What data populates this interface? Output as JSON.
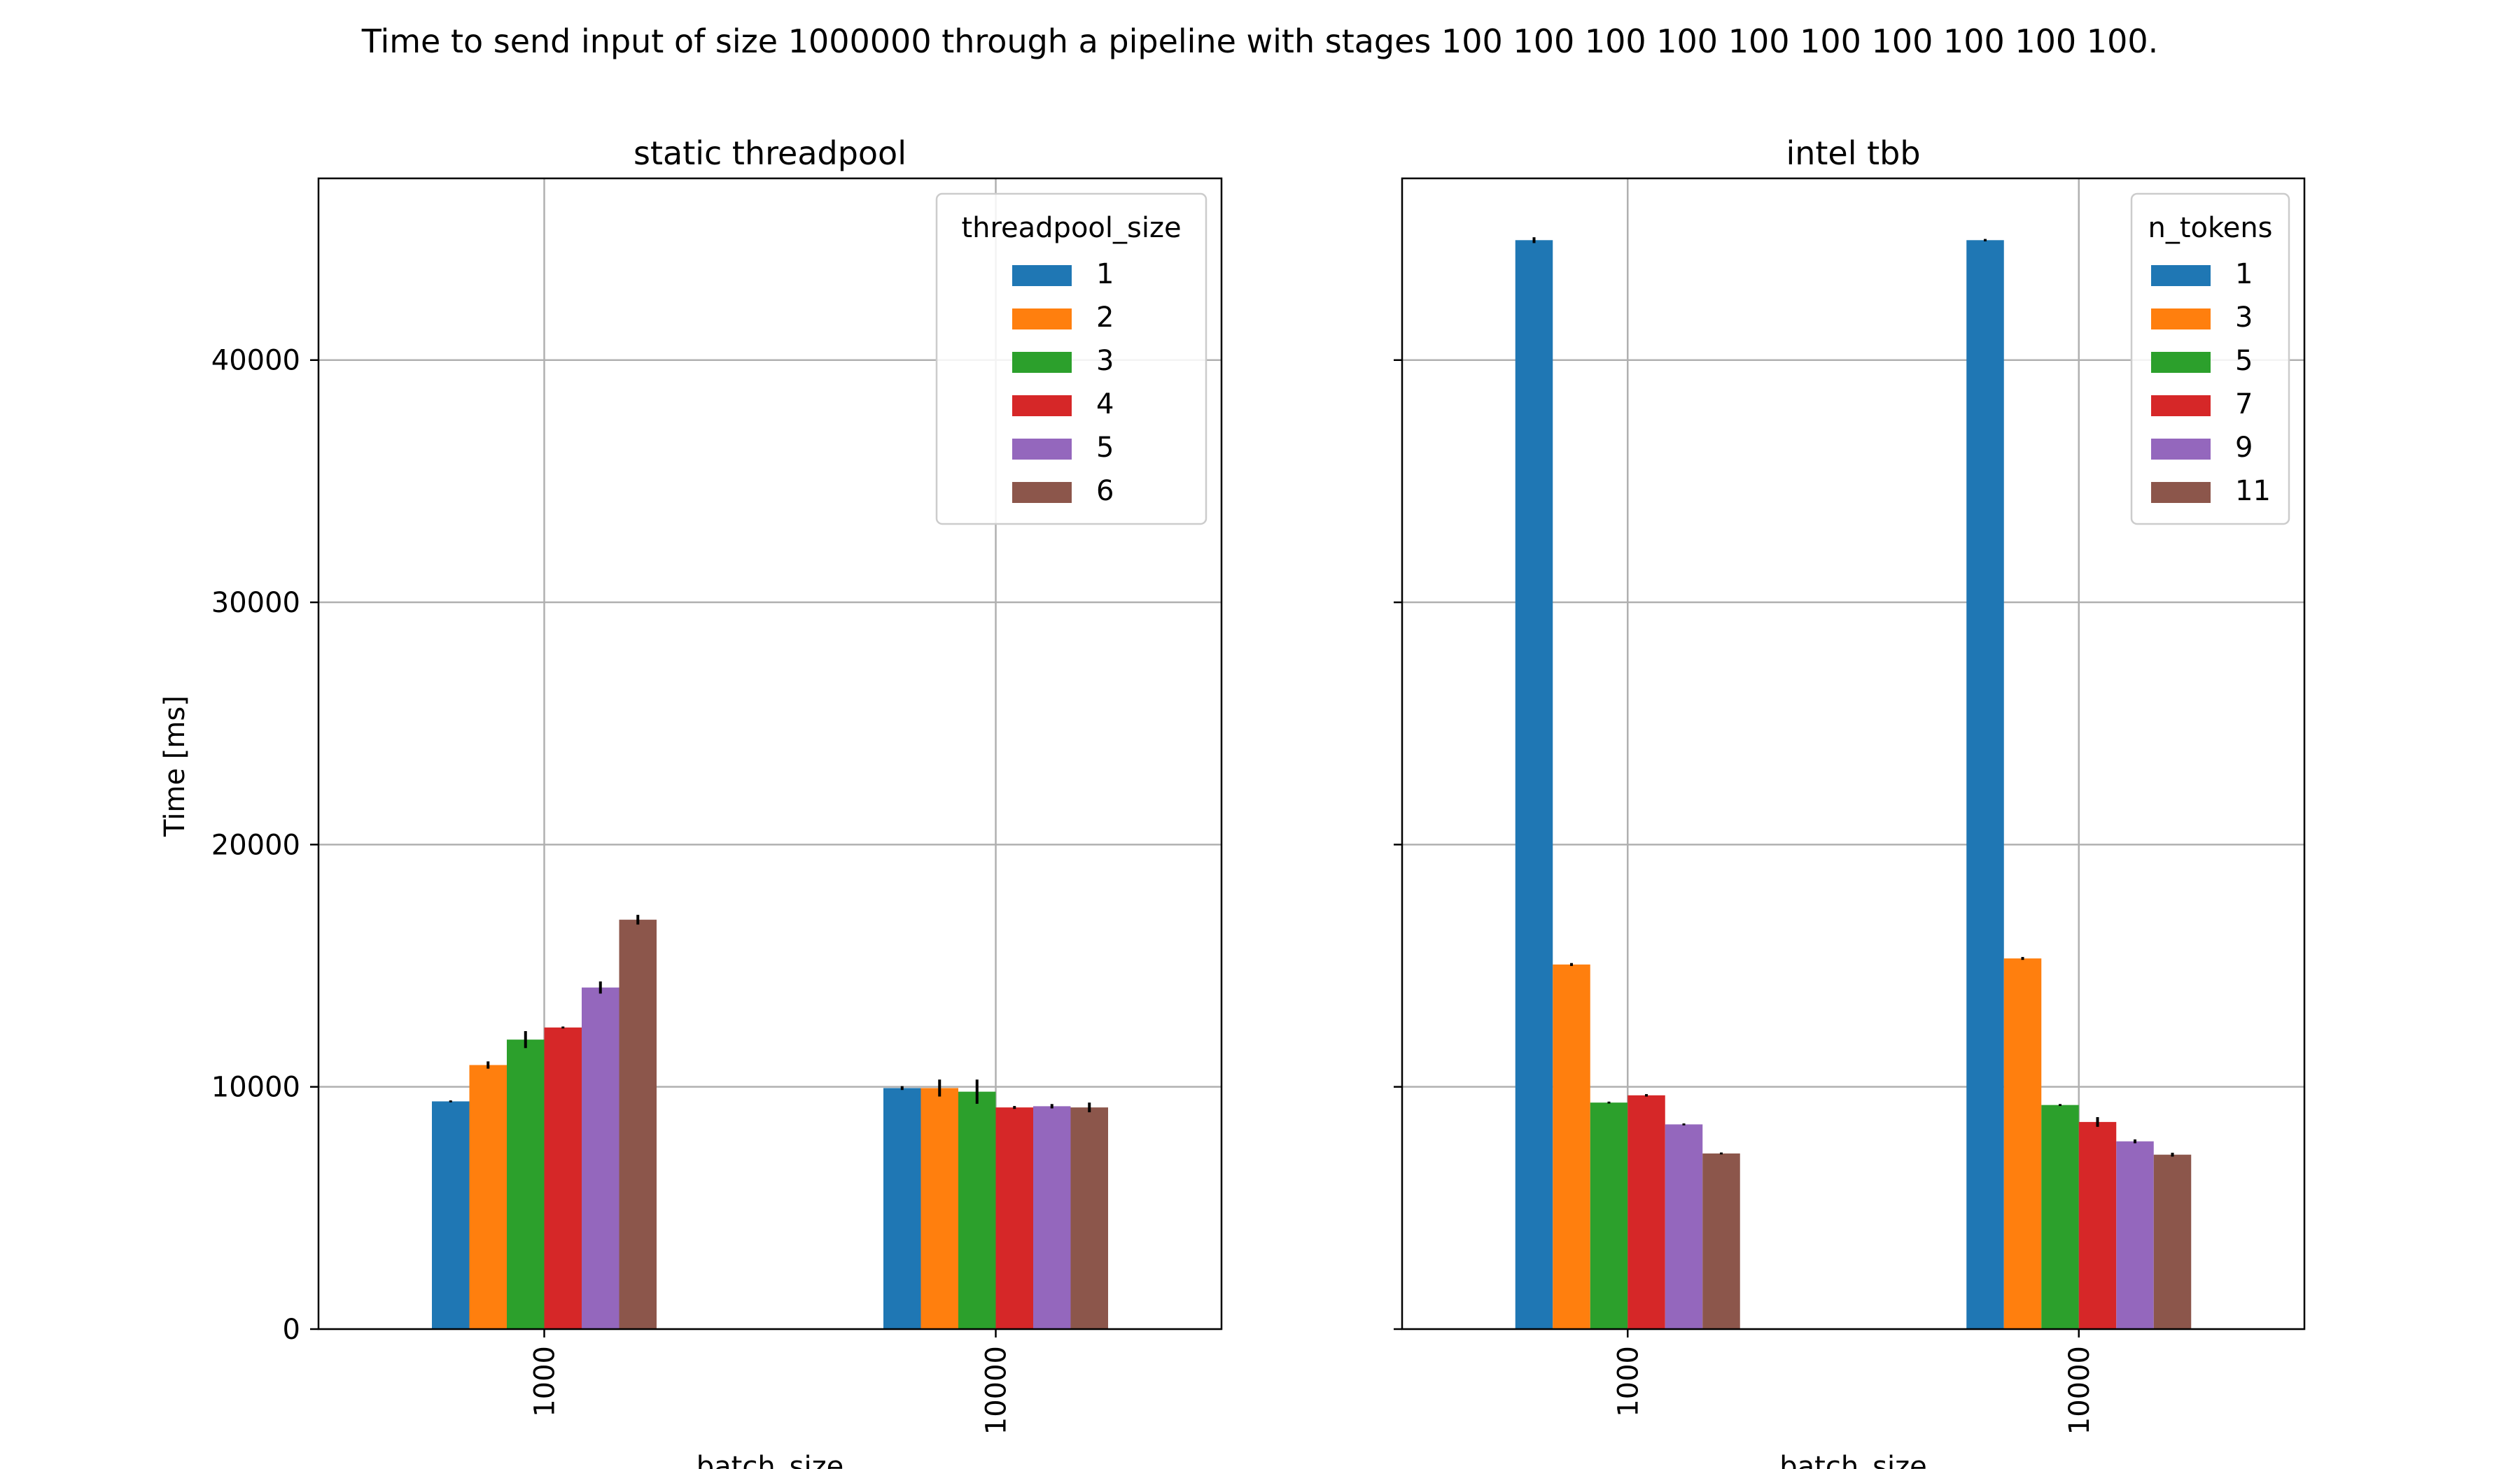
{
  "figure": {
    "suptitle": "Time to send input of size 1000000 through a pipeline with stages 100 100 100 100 100 100 100 100 100 100."
  },
  "colors": {
    "series": [
      "#1f77b4",
      "#ff7f0e",
      "#2ca02c",
      "#d62728",
      "#9467bd",
      "#8c564b"
    ],
    "grid": "#b0b0b0",
    "axis": "#000000",
    "error_bar": "#000000"
  },
  "chart_data": [
    {
      "type": "bar",
      "title": "static threadpool",
      "xlabel": "batch_size",
      "ylabel": "Time [ms]",
      "categories": [
        "1000",
        "10000"
      ],
      "ylim": [
        0,
        47500
      ],
      "yticks": [
        0,
        10000,
        20000,
        30000,
        40000
      ],
      "grid": true,
      "legend": {
        "title": "threadpool_size",
        "placement": "top-right"
      },
      "series": [
        {
          "name": "1",
          "values": [
            9400,
            9950
          ],
          "errors": [
            40,
            80
          ]
        },
        {
          "name": "2",
          "values": [
            10900,
            9950
          ],
          "errors": [
            150,
            350
          ]
        },
        {
          "name": "3",
          "values": [
            11950,
            9800
          ],
          "errors": [
            350,
            500
          ]
        },
        {
          "name": "4",
          "values": [
            12450,
            9150
          ],
          "errors": [
            40,
            60
          ]
        },
        {
          "name": "5",
          "values": [
            14100,
            9200
          ],
          "errors": [
            250,
            90
          ]
        },
        {
          "name": "6",
          "values": [
            16900,
            9150
          ],
          "errors": [
            200,
            200
          ]
        }
      ]
    },
    {
      "type": "bar",
      "title": "intel tbb",
      "xlabel": "batch_size",
      "ylabel": "",
      "categories": [
        "1000",
        "10000"
      ],
      "ylim": [
        0,
        47500
      ],
      "yticks": [
        0,
        10000,
        20000,
        30000,
        40000
      ],
      "show_ytick_labels": false,
      "grid": true,
      "legend": {
        "title": "n_tokens",
        "placement": "top-right"
      },
      "series": [
        {
          "name": "1",
          "values": [
            44950,
            44950
          ],
          "errors": [
            120,
            50
          ]
        },
        {
          "name": "3",
          "values": [
            15050,
            15300
          ],
          "errors": [
            60,
            60
          ]
        },
        {
          "name": "5",
          "values": [
            9350,
            9250
          ],
          "errors": [
            40,
            40
          ]
        },
        {
          "name": "7",
          "values": [
            9650,
            8550
          ],
          "errors": [
            50,
            200
          ]
        },
        {
          "name": "9",
          "values": [
            8450,
            7750
          ],
          "errors": [
            40,
            80
          ]
        },
        {
          "name": "11",
          "values": [
            7250,
            7200
          ],
          "errors": [
            40,
            80
          ]
        }
      ]
    }
  ]
}
